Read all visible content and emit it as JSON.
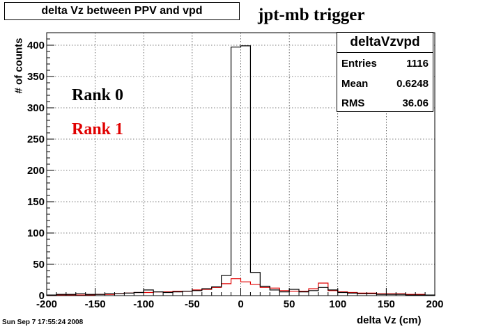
{
  "title": "delta Vz between PPV and vpd",
  "trigger_label": "jpt-mb trigger",
  "rank0_label": "Rank 0",
  "rank1_label": "Rank 1",
  "datestamp": "Sun Sep  7 17:55:24 2008",
  "colors": {
    "rank0": "#000000",
    "rank1": "#e00000"
  },
  "stats": {
    "name": "deltaVzvpd",
    "entries_label": "Entries",
    "entries_value": "1116",
    "mean_label": "Mean",
    "mean_value": "0.6248",
    "rms_label": "RMS",
    "rms_value": "36.06"
  },
  "chart_data": {
    "type": "line",
    "title": "delta Vz between PPV and vpd",
    "xlabel": "delta Vz (cm)",
    "ylabel": "# of counts",
    "xlim": [
      -200,
      200
    ],
    "ylim": [
      0,
      420
    ],
    "grid": true,
    "xticks": [
      -200,
      -150,
      -100,
      -50,
      0,
      50,
      100,
      150,
      200
    ],
    "yticks": [
      0,
      50,
      100,
      150,
      200,
      250,
      300,
      350,
      400
    ],
    "bin_edges": [
      -200,
      -190,
      -180,
      -170,
      -160,
      -150,
      -140,
      -130,
      -120,
      -110,
      -100,
      -90,
      -80,
      -70,
      -60,
      -50,
      -40,
      -30,
      -20,
      -10,
      0,
      10,
      20,
      30,
      40,
      50,
      60,
      70,
      80,
      90,
      100,
      110,
      120,
      130,
      140,
      150,
      160,
      170,
      180,
      190,
      200
    ],
    "series": [
      {
        "name": "Rank 0",
        "values": [
          1,
          2,
          2,
          3,
          2,
          2,
          3,
          3,
          4,
          5,
          9,
          6,
          5,
          6,
          7,
          8,
          11,
          14,
          32,
          397,
          399,
          37,
          15,
          9,
          6,
          10,
          6,
          8,
          13,
          9,
          5,
          4,
          3,
          3,
          2,
          2,
          2,
          1,
          1,
          1
        ]
      },
      {
        "name": "Rank 1",
        "values": [
          0,
          1,
          1,
          1,
          1,
          2,
          2,
          3,
          4,
          5,
          5,
          6,
          6,
          7,
          7,
          9,
          10,
          13,
          19,
          27,
          22,
          18,
          13,
          12,
          8,
          7,
          7,
          11,
          20,
          8,
          6,
          5,
          4,
          4,
          3,
          3,
          3,
          2,
          2,
          1
        ]
      }
    ]
  }
}
